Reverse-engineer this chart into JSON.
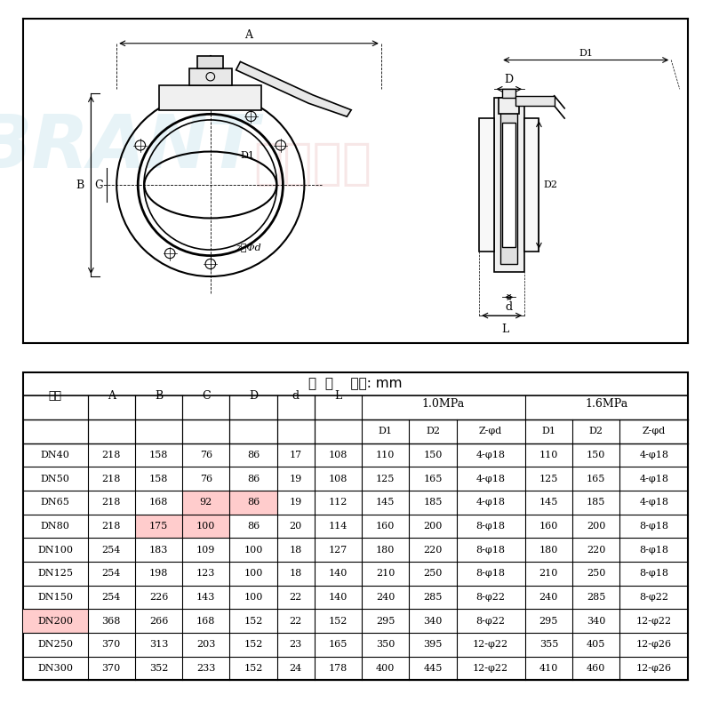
{
  "title": "",
  "bg_color": "#ffffff",
  "table_title": "尺  寸    单位: mm",
  "col_headers_row1": [
    "口径",
    "A",
    "B",
    "C",
    "D",
    "d",
    "L",
    "1.0MPa",
    "",
    "",
    "1.6MPa",
    "",
    ""
  ],
  "col_headers_row2": [
    "",
    "",
    "",
    "",
    "",
    "",
    "",
    "D1",
    "D2",
    "Z-φd",
    "D1",
    "D2",
    "Z-φd"
  ],
  "rows": [
    [
      "DN40",
      "218",
      "158",
      "76",
      "86",
      "17",
      "108",
      "110",
      "150",
      "4-φ18",
      "110",
      "150",
      "4-φ18"
    ],
    [
      "DN50",
      "218",
      "158",
      "76",
      "86",
      "19",
      "108",
      "125",
      "165",
      "4-φ18",
      "125",
      "165",
      "4-φ18"
    ],
    [
      "DN65",
      "218",
      "168",
      "92",
      "86",
      "19",
      "112",
      "145",
      "185",
      "4-φ18",
      "145",
      "185",
      "4-φ18"
    ],
    [
      "DN80",
      "218",
      "175",
      "100",
      "86",
      "20",
      "114",
      "160",
      "200",
      "8-φ18",
      "160",
      "200",
      "8-φ18"
    ],
    [
      "DN100",
      "254",
      "183",
      "109",
      "100",
      "18",
      "127",
      "180",
      "220",
      "8-φ18",
      "180",
      "220",
      "8-φ18"
    ],
    [
      "DN125",
      "254",
      "198",
      "123",
      "100",
      "18",
      "140",
      "210",
      "250",
      "8-φ18",
      "210",
      "250",
      "8-φ18"
    ],
    [
      "DN150",
      "254",
      "226",
      "143",
      "100",
      "22",
      "140",
      "240",
      "285",
      "8-φ22",
      "240",
      "285",
      "8-φ22"
    ],
    [
      "DN200",
      "368",
      "266",
      "168",
      "152",
      "22",
      "152",
      "295",
      "340",
      "8-φ22",
      "295",
      "340",
      "12-φ22"
    ],
    [
      "DN250",
      "370",
      "313",
      "203",
      "152",
      "23",
      "165",
      "350",
      "395",
      "12-φ22",
      "355",
      "405",
      "12-φ26"
    ],
    [
      "DN300",
      "370",
      "352",
      "233",
      "152",
      "24",
      "178",
      "400",
      "445",
      "12-φ22",
      "410",
      "460",
      "12-φ26"
    ]
  ],
  "highlight_rows": [
    2,
    3,
    7
  ],
  "highlight_cols_per_row": {
    "2": [
      3,
      4
    ],
    "3": [
      2,
      3
    ],
    "7": [
      0
    ]
  },
  "watermark_text": "博瑞斯特",
  "watermark_en": "BRANT",
  "brand_color": "#c0392b"
}
